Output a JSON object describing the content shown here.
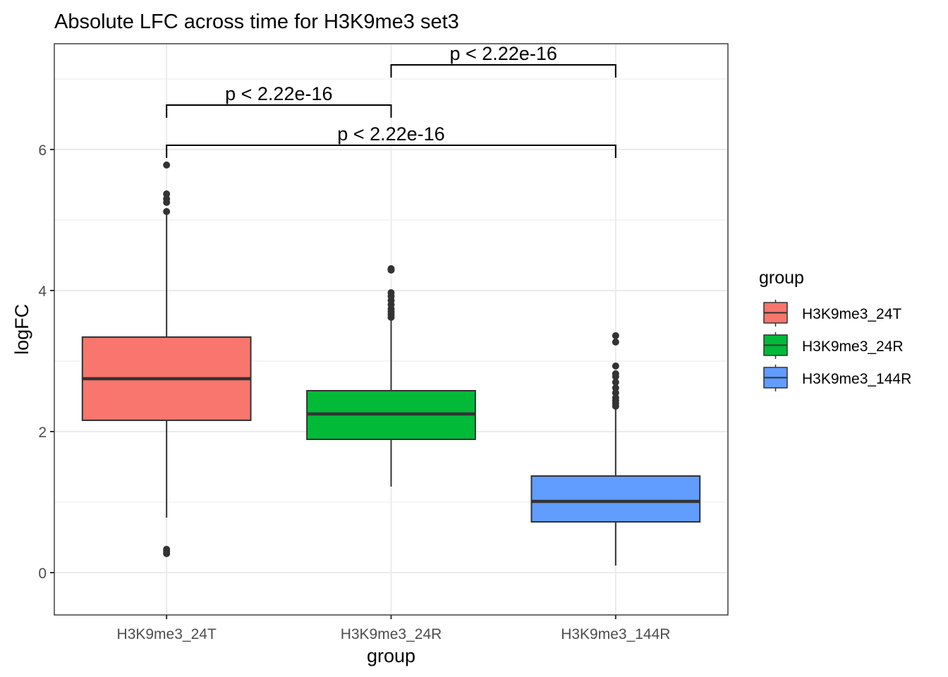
{
  "chart_data": {
    "type": "boxplot",
    "title": "Absolute LFC across time for H3K9me3 set3",
    "xlabel": "group",
    "ylabel": "logFC",
    "ylim": [
      -0.6,
      7.5
    ],
    "yticks": [
      0,
      2,
      4,
      6
    ],
    "grid": true,
    "categories": [
      "H3K9me3_24T",
      "H3K9me3_24R",
      "H3K9me3_144R"
    ],
    "boxes": [
      {
        "group": "H3K9me3_24T",
        "fill": "#F8766D",
        "lower_whisker": 0.78,
        "q1": 2.16,
        "median": 2.75,
        "q3": 3.34,
        "upper_whisker": 5.08,
        "outliers": [
          0.27,
          0.3,
          0.33,
          5.12,
          5.25,
          5.3,
          5.37,
          5.78
        ]
      },
      {
        "group": "H3K9me3_24R",
        "fill": "#00BA38",
        "lower_whisker": 1.22,
        "q1": 1.89,
        "median": 2.25,
        "q3": 2.58,
        "upper_whisker": 3.58,
        "outliers": [
          3.62,
          3.66,
          3.7,
          3.74,
          3.8,
          3.86,
          3.92,
          3.97,
          4.29,
          4.31
        ]
      },
      {
        "group": "H3K9me3_144R",
        "fill": "#619CFF",
        "lower_whisker": 0.1,
        "q1": 0.72,
        "median": 1.01,
        "q3": 1.37,
        "upper_whisker": 2.32,
        "outliers": [
          2.36,
          2.4,
          2.44,
          2.48,
          2.55,
          2.62,
          2.7,
          2.78,
          2.82,
          2.93,
          3.27,
          3.36
        ]
      }
    ],
    "comparisons": [
      {
        "from": "H3K9me3_24R",
        "to": "H3K9me3_144R",
        "y": 7.2,
        "label": "p < 2.22e-16"
      },
      {
        "from": "H3K9me3_24T",
        "to": "H3K9me3_24R",
        "y": 6.63,
        "label": "p < 2.22e-16"
      },
      {
        "from": "H3K9me3_24T",
        "to": "H3K9me3_144R",
        "y": 6.06,
        "label": "p < 2.22e-16"
      }
    ],
    "legend": {
      "title": "group",
      "position": "right",
      "entries": [
        {
          "label": "H3K9me3_24T",
          "color": "#F8766D"
        },
        {
          "label": "H3K9me3_24R",
          "color": "#00BA38"
        },
        {
          "label": "H3K9me3_144R",
          "color": "#619CFF"
        }
      ]
    }
  }
}
